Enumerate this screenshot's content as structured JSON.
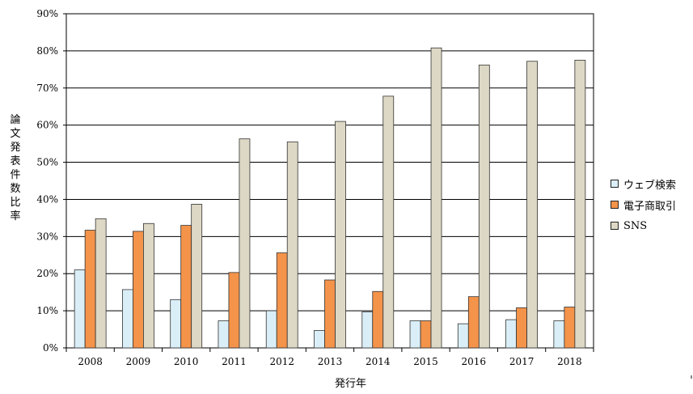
{
  "chart_data": {
    "type": "bar",
    "title": "",
    "xlabel": "発行年",
    "ylabel": "論文発表件数比率",
    "categories": [
      "2008",
      "2009",
      "2010",
      "2011",
      "2012",
      "2013",
      "2014",
      "2015",
      "2016",
      "2017",
      "2018"
    ],
    "series": [
      {
        "name": "ウェブ検索",
        "color": "#daeef7",
        "values": [
          21,
          15.7,
          13,
          7.3,
          10,
          4.7,
          9.7,
          7.3,
          6.5,
          7.6,
          7.3
        ]
      },
      {
        "name": "電子商取引",
        "color": "#f4934a",
        "values": [
          31.7,
          31.4,
          33,
          20.3,
          25.6,
          18.3,
          15.2,
          7.3,
          13.8,
          10.8,
          11
        ]
      },
      {
        "name": "SNS",
        "color": "#ddd8c5",
        "values": [
          34.8,
          33.5,
          38.7,
          56.3,
          55.5,
          61,
          67.8,
          80.8,
          76.2,
          77.2,
          77.5
        ]
      }
    ],
    "yticks": [
      "0%",
      "10%",
      "20%",
      "30%",
      "40%",
      "50%",
      "60%",
      "70%",
      "80%",
      "90%"
    ],
    "ylim": [
      0,
      90
    ],
    "grid": true,
    "legend_position": "right"
  }
}
